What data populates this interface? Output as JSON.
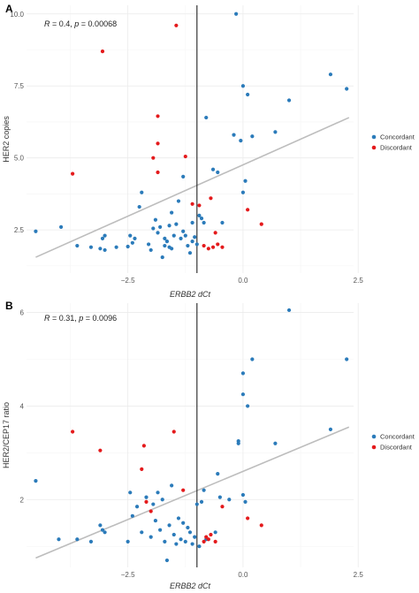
{
  "chart_data": [
    {
      "panel": "A",
      "type": "scatter",
      "annotation": {
        "r": "0.4",
        "p": "0.00068"
      },
      "xlabel": "ERBB2 dCt",
      "ylabel": "HER2 copies",
      "xlim": [
        -4.7,
        2.4
      ],
      "ylim": [
        1.0,
        10.3
      ],
      "x_ticks": [
        -2.5,
        0.0,
        2.5
      ],
      "x_tick_labels": [
        "−2.5",
        "0.0",
        "2.5"
      ],
      "y_ticks": [
        2.5,
        5.0,
        7.5,
        10.0
      ],
      "y_tick_labels": [
        "2.5",
        "5.0",
        "7.5",
        "10.0"
      ],
      "vline": -1.0,
      "regression": {
        "x": [
          -4.5,
          2.3
        ],
        "y": [
          1.55,
          6.4
        ]
      },
      "grid": true,
      "legend": {
        "placement": "right",
        "entries": [
          {
            "name": "Concordant",
            "color": "#2b7bba"
          },
          {
            "name": "Discordant",
            "color": "#e41a1c"
          }
        ]
      },
      "series": [
        {
          "name": "Concordant",
          "color": "#2b7bba",
          "points": [
            [
              -4.5,
              2.45
            ],
            [
              -3.95,
              2.6
            ],
            [
              -3.6,
              1.95
            ],
            [
              -3.3,
              1.9
            ],
            [
              -3.1,
              1.85
            ],
            [
              -3.05,
              2.2
            ],
            [
              -3.0,
              2.3
            ],
            [
              -3.0,
              1.8
            ],
            [
              -2.75,
              1.9
            ],
            [
              -2.5,
              1.92
            ],
            [
              -2.45,
              2.3
            ],
            [
              -2.4,
              2.05
            ],
            [
              -2.35,
              2.2
            ],
            [
              -2.25,
              3.3
            ],
            [
              -2.2,
              3.8
            ],
            [
              -2.05,
              2.0
            ],
            [
              -2.0,
              1.8
            ],
            [
              -1.95,
              2.55
            ],
            [
              -1.9,
              2.85
            ],
            [
              -1.85,
              2.4
            ],
            [
              -1.8,
              2.6
            ],
            [
              -1.75,
              1.55
            ],
            [
              -1.7,
              2.2
            ],
            [
              -1.6,
              2.65
            ],
            [
              -1.55,
              3.1
            ],
            [
              -1.5,
              2.3
            ],
            [
              -1.45,
              2.7
            ],
            [
              -1.4,
              3.5
            ],
            [
              -1.35,
              2.2
            ],
            [
              -1.3,
              4.35
            ],
            [
              -1.3,
              2.45
            ],
            [
              -1.25,
              2.3
            ],
            [
              -1.2,
              1.95
            ],
            [
              -1.15,
              1.7
            ],
            [
              -1.1,
              2.1
            ],
            [
              -1.05,
              2.25
            ],
            [
              -1.0,
              2.0
            ],
            [
              -0.95,
              3.0
            ],
            [
              -0.9,
              2.9
            ],
            [
              -0.85,
              2.75
            ],
            [
              -0.8,
              6.4
            ],
            [
              -1.6,
              1.9
            ],
            [
              -1.7,
              1.95
            ],
            [
              -1.55,
              1.85
            ],
            [
              -1.65,
              2.1
            ],
            [
              -1.1,
              2.75
            ],
            [
              -0.65,
              4.6
            ],
            [
              -0.55,
              4.5
            ],
            [
              -0.45,
              2.75
            ],
            [
              -0.2,
              5.8
            ],
            [
              -0.15,
              10.0
            ],
            [
              -0.05,
              5.6
            ],
            [
              0.0,
              7.5
            ],
            [
              0.05,
              4.2
            ],
            [
              0.1,
              7.2
            ],
            [
              0.0,
              3.8
            ],
            [
              0.2,
              5.75
            ],
            [
              0.7,
              5.9
            ],
            [
              1.0,
              7.0
            ],
            [
              1.9,
              7.9
            ],
            [
              2.25,
              7.4
            ]
          ]
        },
        {
          "name": "Discordant",
          "color": "#e41a1c",
          "points": [
            [
              -3.7,
              4.45
            ],
            [
              -3.05,
              8.7
            ],
            [
              -1.45,
              9.6
            ],
            [
              -1.85,
              6.45
            ],
            [
              -1.85,
              5.5
            ],
            [
              -1.95,
              5.0
            ],
            [
              -1.85,
              4.5
            ],
            [
              -1.25,
              5.05
            ],
            [
              -1.1,
              3.4
            ],
            [
              -0.95,
              3.35
            ],
            [
              -0.7,
              3.6
            ],
            [
              -0.6,
              2.4
            ],
            [
              -0.85,
              1.95
            ],
            [
              -0.75,
              1.85
            ],
            [
              -0.65,
              1.9
            ],
            [
              -0.55,
              2.0
            ],
            [
              -0.45,
              1.9
            ],
            [
              0.1,
              3.2
            ],
            [
              0.4,
              2.7
            ]
          ]
        }
      ]
    },
    {
      "panel": "B",
      "type": "scatter",
      "annotation": {
        "r": "0.31",
        "p": "0.0096"
      },
      "xlabel": "ERBB2 dCt",
      "ylabel": "HER2/CEP17 ratio",
      "xlim": [
        -4.7,
        2.4
      ],
      "ylim": [
        0.55,
        6.2
      ],
      "x_ticks": [
        -2.5,
        0.0,
        2.5
      ],
      "x_tick_labels": [
        "−2.5",
        "0.0",
        "2.5"
      ],
      "y_ticks": [
        2,
        4,
        6
      ],
      "y_tick_labels": [
        "2",
        "4",
        "6"
      ],
      "vline": -1.0,
      "regression": {
        "x": [
          -4.5,
          2.3
        ],
        "y": [
          0.75,
          3.55
        ]
      },
      "grid": true,
      "legend": {
        "placement": "right",
        "entries": [
          {
            "name": "Concordant",
            "color": "#2b7bba"
          },
          {
            "name": "Discordant",
            "color": "#e41a1c"
          }
        ]
      },
      "series": [
        {
          "name": "Concordant",
          "color": "#2b7bba",
          "points": [
            [
              -4.5,
              2.4
            ],
            [
              -4.0,
              1.15
            ],
            [
              -3.6,
              1.15
            ],
            [
              -3.3,
              1.1
            ],
            [
              -3.1,
              1.45
            ],
            [
              -3.05,
              1.35
            ],
            [
              -3.0,
              1.3
            ],
            [
              -2.5,
              1.1
            ],
            [
              -2.45,
              2.15
            ],
            [
              -2.4,
              1.65
            ],
            [
              -2.3,
              1.85
            ],
            [
              -2.2,
              1.3
            ],
            [
              -2.1,
              2.05
            ],
            [
              -2.0,
              1.2
            ],
            [
              -1.95,
              1.9
            ],
            [
              -1.9,
              1.55
            ],
            [
              -1.85,
              2.15
            ],
            [
              -1.8,
              1.35
            ],
            [
              -1.75,
              2.0
            ],
            [
              -1.7,
              1.1
            ],
            [
              -1.65,
              0.7
            ],
            [
              -1.6,
              1.45
            ],
            [
              -1.55,
              2.3
            ],
            [
              -1.5,
              1.25
            ],
            [
              -1.45,
              1.05
            ],
            [
              -1.4,
              1.6
            ],
            [
              -1.35,
              1.15
            ],
            [
              -1.3,
              1.5
            ],
            [
              -1.25,
              1.1
            ],
            [
              -1.2,
              1.4
            ],
            [
              -1.15,
              1.3
            ],
            [
              -1.1,
              1.05
            ],
            [
              -1.05,
              1.2
            ],
            [
              -1.0,
              1.9
            ],
            [
              -0.95,
              1.0
            ],
            [
              -0.9,
              1.95
            ],
            [
              -0.85,
              2.2
            ],
            [
              -0.8,
              1.15
            ],
            [
              -0.6,
              1.3
            ],
            [
              -0.55,
              2.55
            ],
            [
              -0.5,
              2.05
            ],
            [
              -0.3,
              2.0
            ],
            [
              -0.1,
              3.25
            ],
            [
              -0.1,
              3.2
            ],
            [
              0.0,
              4.7
            ],
            [
              0.0,
              4.25
            ],
            [
              0.0,
              2.1
            ],
            [
              0.05,
              1.95
            ],
            [
              0.1,
              4.0
            ],
            [
              0.2,
              5.0
            ],
            [
              0.7,
              3.2
            ],
            [
              1.0,
              6.05
            ],
            [
              1.9,
              3.5
            ],
            [
              2.25,
              5.0
            ]
          ]
        },
        {
          "name": "Discordant",
          "color": "#e41a1c",
          "points": [
            [
              -3.7,
              3.45
            ],
            [
              -3.1,
              3.05
            ],
            [
              -2.2,
              2.65
            ],
            [
              -2.15,
              3.15
            ],
            [
              -2.1,
              1.95
            ],
            [
              -2.0,
              1.75
            ],
            [
              -1.5,
              3.45
            ],
            [
              -1.3,
              2.2
            ],
            [
              -0.85,
              1.1
            ],
            [
              -0.8,
              1.2
            ],
            [
              -0.75,
              1.15
            ],
            [
              -0.7,
              1.25
            ],
            [
              -0.6,
              1.1
            ],
            [
              -0.45,
              1.85
            ],
            [
              0.1,
              1.6
            ],
            [
              0.4,
              1.45
            ]
          ]
        }
      ]
    }
  ]
}
